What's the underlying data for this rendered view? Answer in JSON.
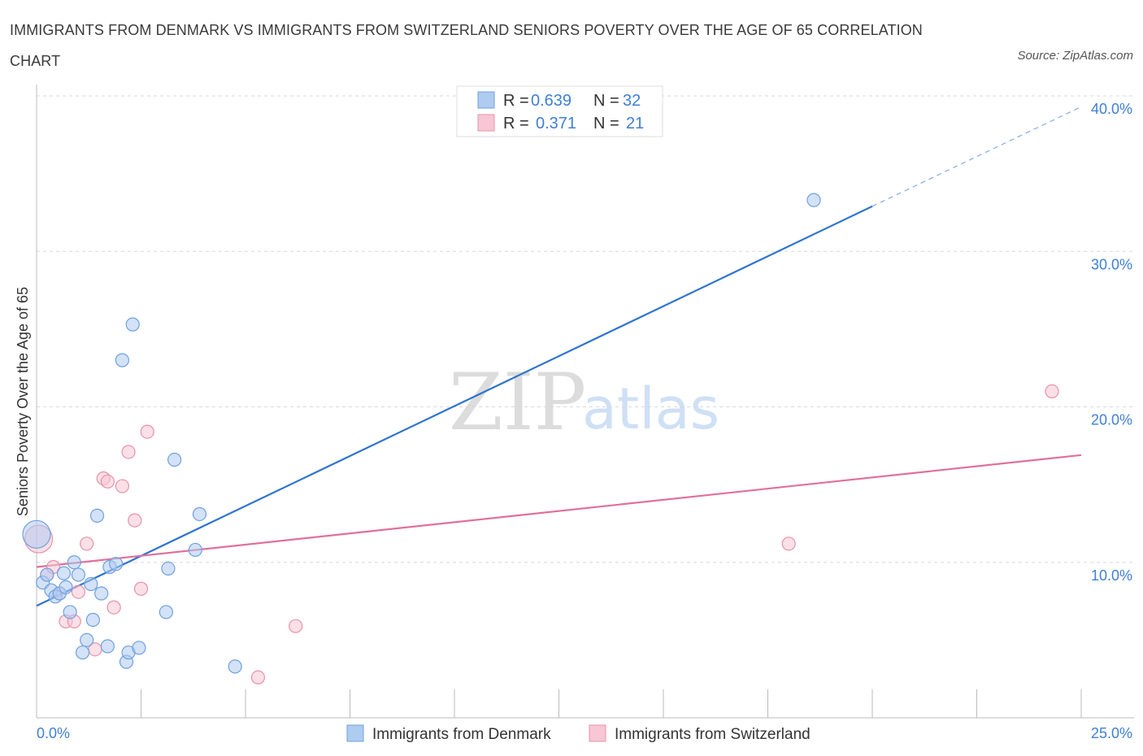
{
  "title": "IMMIGRANTS FROM DENMARK VS IMMIGRANTS FROM SWITZERLAND SENIORS POVERTY OVER THE AGE OF 65 CORRELATION CHART",
  "source": "Source: ZipAtlas.com",
  "watermark": {
    "zip": "ZIP",
    "atlas": "atlas"
  },
  "legend": {
    "rows": [
      {
        "r_label": "R = ",
        "r_value": "0.639",
        "n_label": "N = ",
        "n_value": "32",
        "color": "#aecbf0",
        "stroke": "#6fa0e0"
      },
      {
        "r_label": "R = ",
        "r_value": "0.371",
        "n_label": "N = ",
        "n_value": "21",
        "color": "#f8c6d4",
        "stroke": "#e891ab"
      }
    ]
  },
  "colors": {
    "blue_fill": "#aecbf0",
    "blue_stroke": "#6fa0e0",
    "blue_line": "#2f74d0",
    "pink_fill": "#f8c6d4",
    "pink_stroke": "#e891ab",
    "pink_line": "#e0709a",
    "grid": "#d8d8d8",
    "tick_label": "#3f7fd6"
  },
  "chart_data": {
    "type": "scatter",
    "title": "IMMIGRANTS FROM DENMARK VS IMMIGRANTS FROM SWITZERLAND SENIORS POVERTY OVER THE AGE OF 65 CORRELATION CHART",
    "xlabel": "",
    "ylabel": "Seniors Poverty Over the Age of 65",
    "xlim": [
      0,
      25
    ],
    "ylim": [
      0,
      40
    ],
    "x_tick_labels": [
      "0.0%",
      "25.0%"
    ],
    "y_ticks": [
      10,
      20,
      30,
      40
    ],
    "y_tick_labels": [
      "10.0%",
      "20.0%",
      "30.0%",
      "40.0%"
    ],
    "grid": true,
    "legend_position": "top-center",
    "series": [
      {
        "name": "Immigrants from Denmark",
        "points": [
          {
            "x": 0.0,
            "y": 11.8
          },
          {
            "x": 0.15,
            "y": 8.7
          },
          {
            "x": 0.25,
            "y": 9.2
          },
          {
            "x": 0.35,
            "y": 8.2
          },
          {
            "x": 0.45,
            "y": 7.8
          },
          {
            "x": 0.55,
            "y": 8.0
          },
          {
            "x": 0.65,
            "y": 9.3
          },
          {
            "x": 0.7,
            "y": 8.4
          },
          {
            "x": 0.8,
            "y": 6.8
          },
          {
            "x": 0.9,
            "y": 10.0
          },
          {
            "x": 1.0,
            "y": 9.2
          },
          {
            "x": 1.1,
            "y": 4.2
          },
          {
            "x": 1.2,
            "y": 5.0
          },
          {
            "x": 1.3,
            "y": 8.6
          },
          {
            "x": 1.35,
            "y": 6.3
          },
          {
            "x": 1.45,
            "y": 13.0
          },
          {
            "x": 1.55,
            "y": 8.0
          },
          {
            "x": 1.7,
            "y": 4.6
          },
          {
            "x": 1.75,
            "y": 9.7
          },
          {
            "x": 1.9,
            "y": 9.9
          },
          {
            "x": 2.05,
            "y": 23.0
          },
          {
            "x": 2.15,
            "y": 3.6
          },
          {
            "x": 2.2,
            "y": 4.2
          },
          {
            "x": 2.3,
            "y": 25.3
          },
          {
            "x": 2.45,
            "y": 4.5
          },
          {
            "x": 3.1,
            "y": 6.8
          },
          {
            "x": 3.15,
            "y": 9.6
          },
          {
            "x": 3.3,
            "y": 16.6
          },
          {
            "x": 3.8,
            "y": 10.8
          },
          {
            "x": 3.9,
            "y": 13.1
          },
          {
            "x": 4.75,
            "y": 3.3
          },
          {
            "x": 18.6,
            "y": 33.3
          }
        ],
        "trend": {
          "x": [
            0,
            20
          ],
          "y": [
            7.2,
            32.9
          ],
          "dashed_extension": {
            "x": [
              20,
              25
            ],
            "y": [
              32.9,
              39.3
            ]
          }
        }
      },
      {
        "name": "Immigrants from Switzerland",
        "points": [
          {
            "x": 0.05,
            "y": 11.5
          },
          {
            "x": 0.25,
            "y": 9.2
          },
          {
            "x": 0.4,
            "y": 9.7
          },
          {
            "x": 0.55,
            "y": 8.0
          },
          {
            "x": 0.7,
            "y": 6.2
          },
          {
            "x": 0.9,
            "y": 6.2
          },
          {
            "x": 1.0,
            "y": 8.1
          },
          {
            "x": 1.2,
            "y": 11.2
          },
          {
            "x": 1.4,
            "y": 4.4
          },
          {
            "x": 1.6,
            "y": 15.4
          },
          {
            "x": 1.7,
            "y": 15.2
          },
          {
            "x": 1.85,
            "y": 7.1
          },
          {
            "x": 2.05,
            "y": 14.9
          },
          {
            "x": 2.2,
            "y": 17.1
          },
          {
            "x": 2.35,
            "y": 12.7
          },
          {
            "x": 2.5,
            "y": 8.3
          },
          {
            "x": 2.65,
            "y": 18.4
          },
          {
            "x": 5.3,
            "y": 2.6
          },
          {
            "x": 6.2,
            "y": 5.9
          },
          {
            "x": 18.0,
            "y": 11.2
          },
          {
            "x": 24.3,
            "y": 21.0
          }
        ],
        "trend": {
          "x": [
            0,
            25
          ],
          "y": [
            9.7,
            16.9
          ]
        }
      }
    ]
  },
  "bottom_legend": [
    {
      "label": "Immigrants from Denmark",
      "color": "#aecbf0",
      "stroke": "#6fa0e0"
    },
    {
      "label": "Immigrants from Switzerland",
      "color": "#f8c6d4",
      "stroke": "#e891ab"
    }
  ]
}
